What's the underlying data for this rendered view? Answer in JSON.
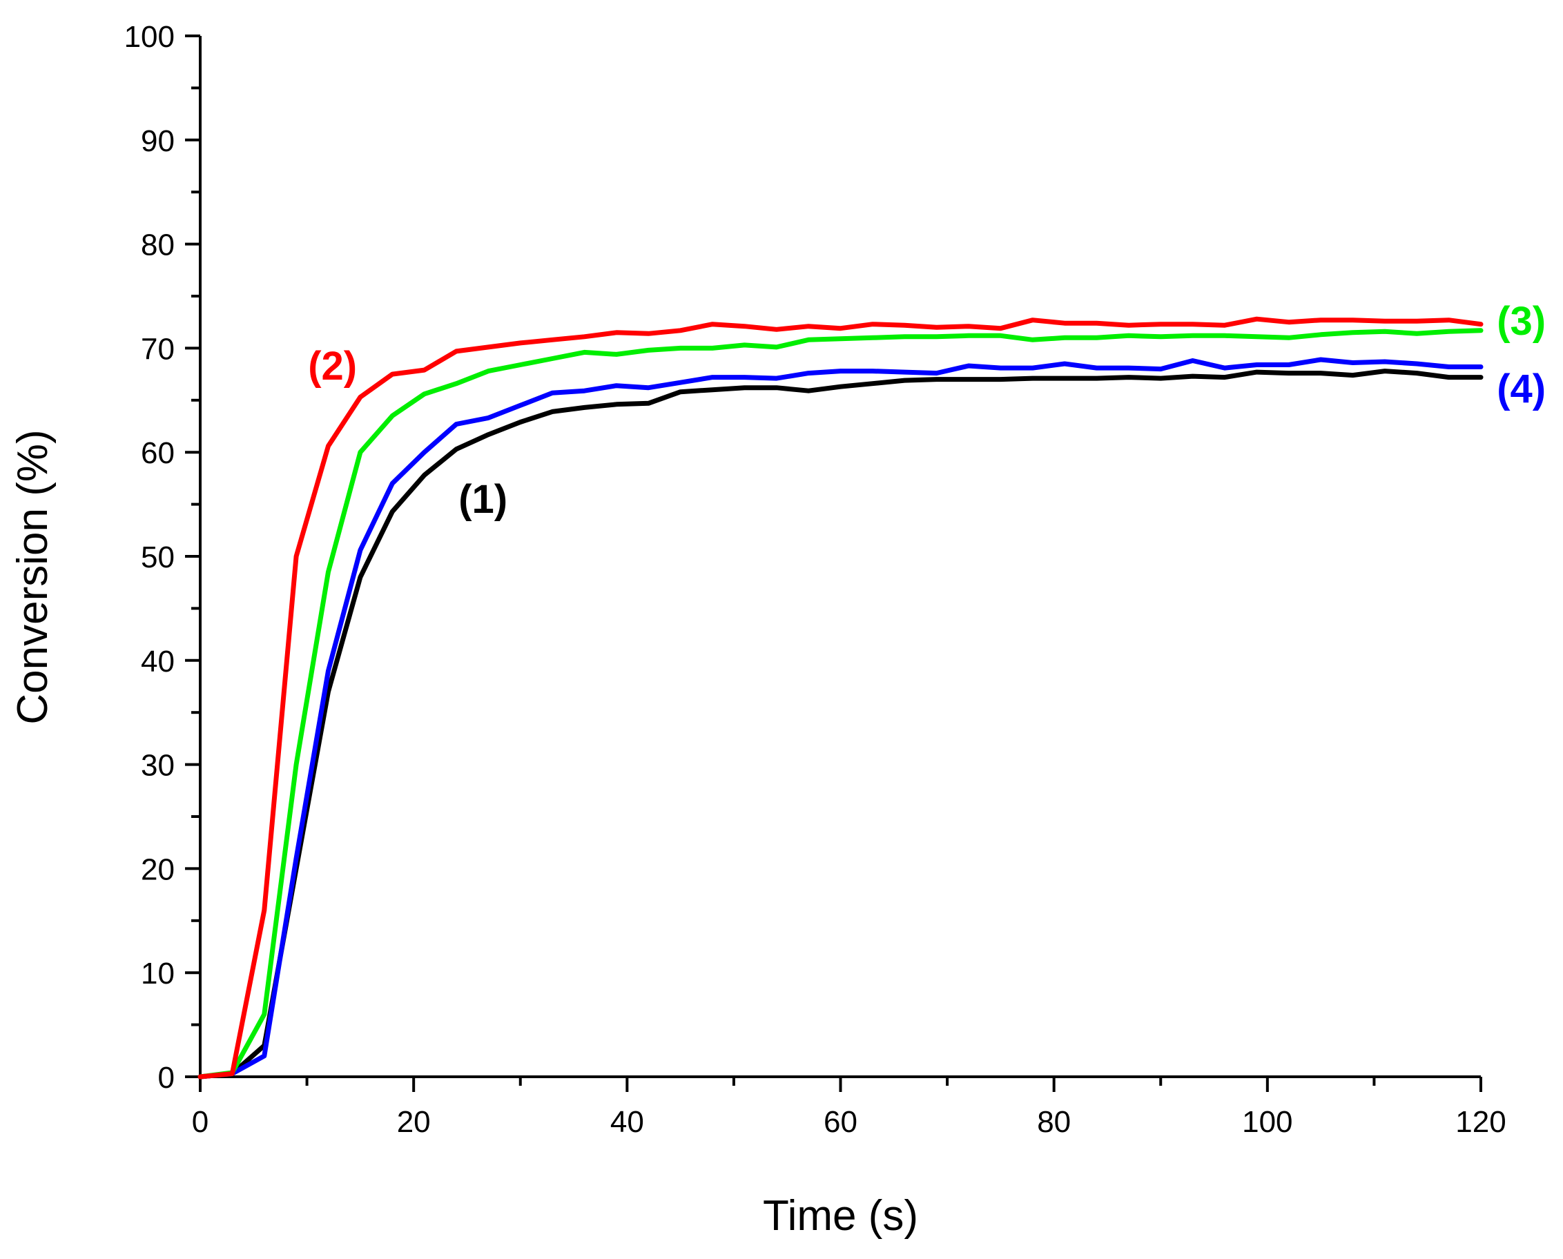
{
  "chart_data": {
    "type": "line",
    "title": "",
    "xlabel": "Time (s)",
    "ylabel": "Conversion (%)",
    "xlim": [
      0,
      120
    ],
    "ylim": [
      0,
      100
    ],
    "x_ticks": [
      0,
      20,
      40,
      60,
      80,
      100,
      120
    ],
    "y_ticks": [
      0,
      10,
      20,
      30,
      40,
      50,
      60,
      70,
      80,
      90,
      100
    ],
    "grid": false,
    "legend": "none",
    "series": [
      {
        "name": "(1)",
        "color": "#000000",
        "x": [
          0,
          3,
          6,
          9,
          12,
          15,
          18,
          21,
          24,
          27,
          30,
          33,
          36,
          39,
          42,
          45,
          48,
          51,
          54,
          57,
          60,
          63,
          66,
          69,
          72,
          75,
          78,
          81,
          84,
          87,
          90,
          93,
          96,
          99,
          102,
          105,
          108,
          111,
          114,
          117,
          120
        ],
        "y": [
          0,
          0.3,
          3,
          20,
          37,
          48,
          54.3,
          57.8,
          60.3,
          61.7,
          62.9,
          63.9,
          64.3,
          64.6,
          64.7,
          65.8,
          66,
          66.2,
          66.2,
          65.9,
          66.3,
          66.6,
          66.9,
          67,
          67,
          67,
          67.1,
          67.1,
          67.1,
          67.2,
          67.1,
          67.3,
          67.2,
          67.7,
          67.6,
          67.6,
          67.4,
          67.8,
          67.6,
          67.2,
          67.2
        ]
      },
      {
        "name": "(2)",
        "color": "#ff0000",
        "x": [
          0,
          3,
          6,
          9,
          12,
          15,
          18,
          21,
          24,
          27,
          30,
          33,
          36,
          39,
          42,
          45,
          48,
          51,
          54,
          57,
          60,
          63,
          66,
          69,
          72,
          75,
          78,
          81,
          84,
          87,
          90,
          93,
          96,
          99,
          102,
          105,
          108,
          111,
          114,
          117,
          120
        ],
        "y": [
          0,
          0.3,
          16,
          50,
          60.6,
          65.3,
          67.5,
          67.9,
          69.7,
          70.1,
          70.5,
          70.8,
          71.1,
          71.5,
          71.4,
          71.7,
          72.3,
          72.1,
          71.8,
          72.1,
          71.9,
          72.3,
          72.2,
          72,
          72.1,
          71.9,
          72.7,
          72.4,
          72.4,
          72.2,
          72.3,
          72.3,
          72.2,
          72.8,
          72.5,
          72.7,
          72.7,
          72.6,
          72.6,
          72.7,
          72.3
        ]
      },
      {
        "name": "(3)",
        "color": "#00ee00",
        "x": [
          0,
          3,
          6,
          9,
          12,
          15,
          18,
          21,
          24,
          27,
          30,
          33,
          36,
          39,
          42,
          45,
          48,
          51,
          54,
          57,
          60,
          63,
          66,
          69,
          72,
          75,
          78,
          81,
          84,
          87,
          90,
          93,
          96,
          99,
          102,
          105,
          108,
          111,
          114,
          117,
          120
        ],
        "y": [
          0,
          0.4,
          6,
          30,
          48.5,
          60,
          63.5,
          65.6,
          66.6,
          67.8,
          68.4,
          69,
          69.6,
          69.4,
          69.8,
          70,
          70,
          70.3,
          70.1,
          70.8,
          70.9,
          71,
          71.1,
          71.1,
          71.2,
          71.2,
          70.8,
          71,
          71,
          71.2,
          71.1,
          71.2,
          71.2,
          71.1,
          71,
          71.3,
          71.5,
          71.6,
          71.4,
          71.6,
          71.7
        ]
      },
      {
        "name": "(4)",
        "color": "#0000ff",
        "x": [
          0,
          3,
          6,
          9,
          12,
          15,
          18,
          21,
          24,
          27,
          30,
          33,
          36,
          39,
          42,
          45,
          48,
          51,
          54,
          57,
          60,
          63,
          66,
          69,
          72,
          75,
          78,
          81,
          84,
          87,
          90,
          93,
          96,
          99,
          102,
          105,
          108,
          111,
          114,
          117,
          120
        ],
        "y": [
          0,
          0.3,
          2,
          21,
          39,
          50.6,
          57,
          60,
          62.7,
          63.3,
          64.5,
          65.7,
          65.9,
          66.4,
          66.2,
          66.7,
          67.2,
          67.2,
          67.1,
          67.6,
          67.8,
          67.8,
          67.7,
          67.6,
          68.3,
          68.1,
          68.1,
          68.5,
          68.1,
          68.1,
          68,
          68.8,
          68.1,
          68.4,
          68.4,
          68.9,
          68.6,
          68.7,
          68.5,
          68.2,
          68.2
        ]
      }
    ],
    "annotations": [
      {
        "text": "(1)",
        "color": "#000000",
        "x": 26.5,
        "y": 55.5,
        "anchor": "middle"
      },
      {
        "text": "(2)",
        "color": "#ff0000",
        "x": 12.4,
        "y": 68.3,
        "anchor": "middle"
      },
      {
        "text": "(3)",
        "color": "#00ee00",
        "x": 121.5,
        "y": 72.6,
        "anchor": "start"
      },
      {
        "text": "(4)",
        "color": "#0000ff",
        "x": 121.5,
        "y": 66.1,
        "anchor": "start"
      }
    ]
  }
}
